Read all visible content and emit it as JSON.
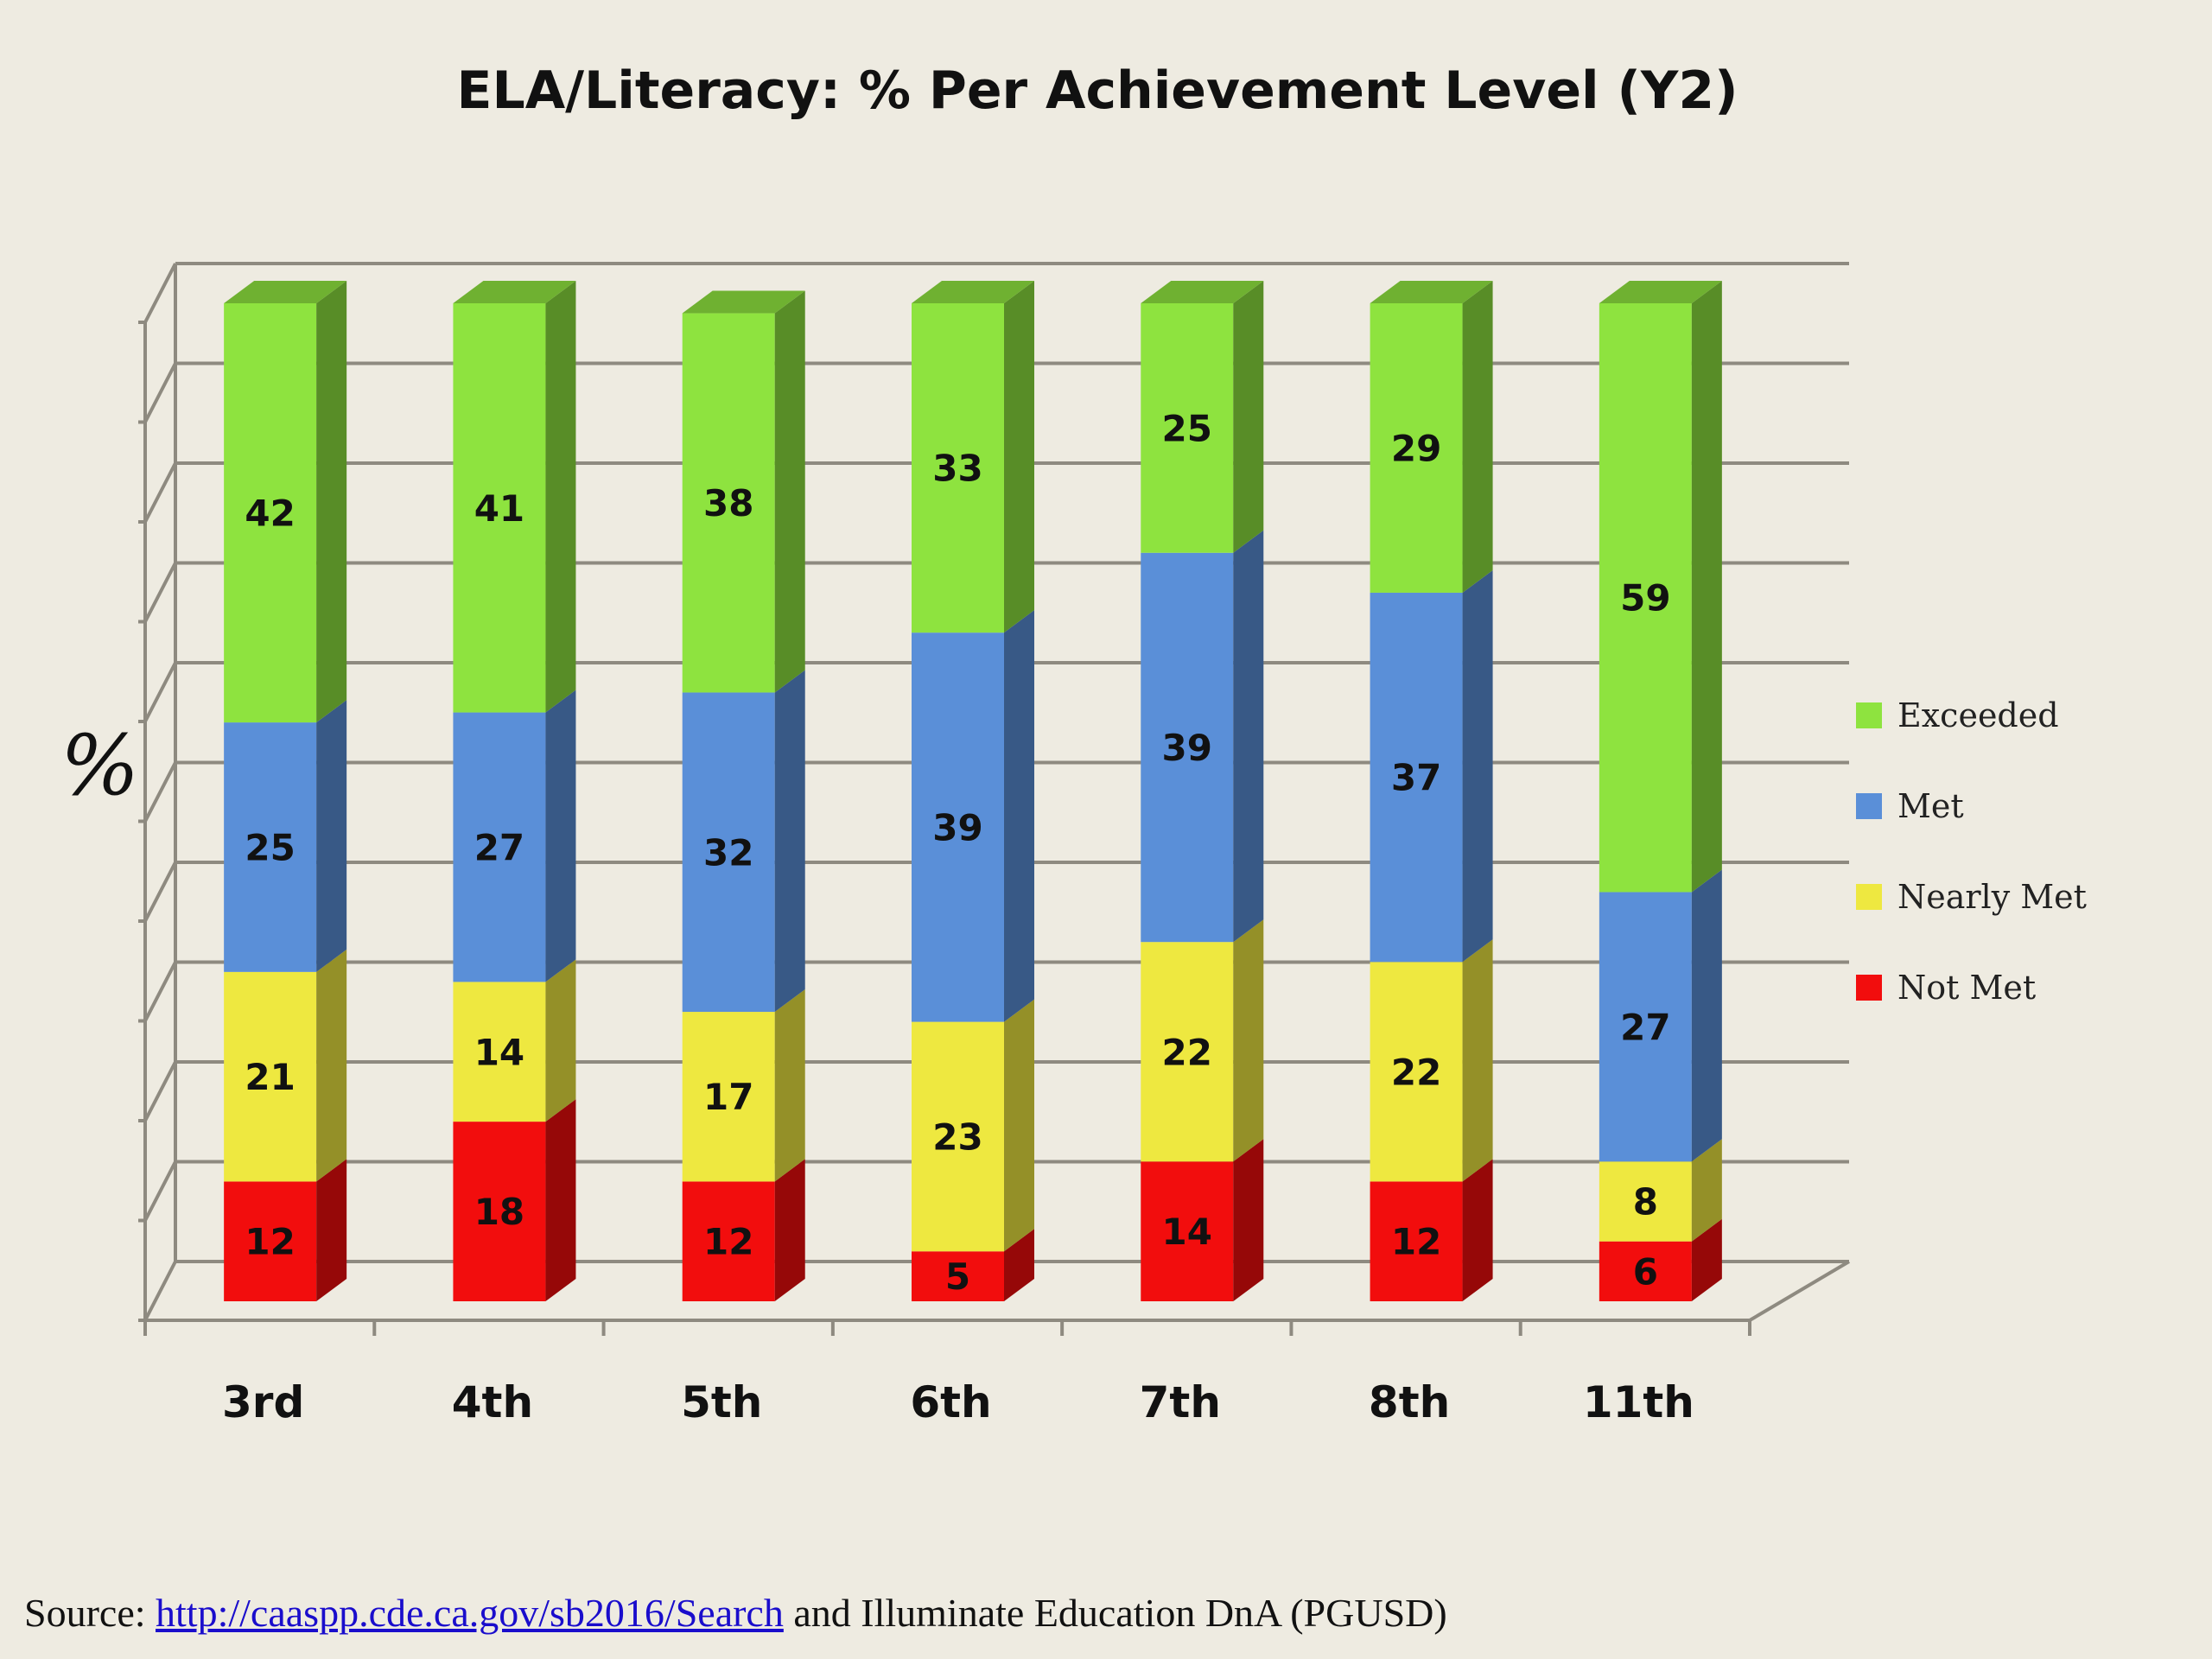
{
  "chart_data": {
    "type": "bar",
    "stacked": true,
    "three_d": true,
    "title": "ELA/Literacy: % Per Achievement Level (Y2)",
    "ylabel": "%",
    "ylim": [
      0,
      100
    ],
    "grid": true,
    "legend_position": "right",
    "categories": [
      "3rd",
      "4th",
      "5th",
      "6th",
      "7th",
      "8th",
      "11th"
    ],
    "series": [
      {
        "name": "Not Met",
        "color": "#F20D0D",
        "values": [
          12,
          18,
          12,
          5,
          14,
          12,
          6
        ]
      },
      {
        "name": "Nearly Met",
        "color": "#EEE840",
        "values": [
          21,
          14,
          17,
          23,
          22,
          22,
          8
        ]
      },
      {
        "name": "Met",
        "color": "#5A8FD8",
        "values": [
          25,
          27,
          32,
          39,
          39,
          37,
          27
        ]
      },
      {
        "name": "Exceeded",
        "color": "#8EE33F",
        "values": [
          42,
          41,
          38,
          33,
          25,
          29,
          59
        ]
      }
    ]
  },
  "legend": [
    {
      "label": "Exceeded",
      "color": "#8EE33F"
    },
    {
      "label": "Met",
      "color": "#5A8FD8"
    },
    {
      "label": "Nearly Met",
      "color": "#EEE840"
    },
    {
      "label": "Not Met",
      "color": "#F20D0D"
    }
  ],
  "source": {
    "prefix": "Source: ",
    "link_text": "http://caaspp.cde.ca.gov/sb2016/Search",
    "suffix": " and Illuminate Education DnA (PGUSD)"
  }
}
